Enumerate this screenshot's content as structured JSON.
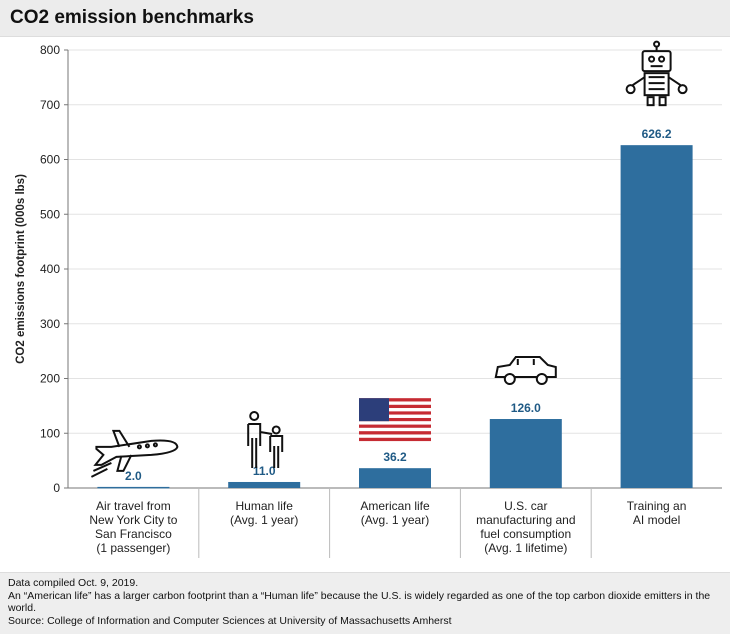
{
  "title": "CO2 emission benchmarks",
  "chart_data": {
    "type": "bar",
    "title": "CO2 emission benchmarks",
    "ylabel": "CO2 emissions footprint (000s lbs)",
    "xlabel": "",
    "ylim": [
      0,
      800
    ],
    "yticks": [
      0,
      100,
      200,
      300,
      400,
      500,
      600,
      700,
      800
    ],
    "categories": [
      [
        "Air travel from",
        "New York City to",
        "San Francisco",
        "(1 passenger)"
      ],
      [
        "Human life",
        "(Avg. 1 year)"
      ],
      [
        "American life",
        "(Avg. 1 year)"
      ],
      [
        "U.S. car",
        "manufacturing and",
        "fuel consumption",
        "(Avg. 1 lifetime)"
      ],
      [
        "Training an",
        "AI model"
      ]
    ],
    "values": [
      2.0,
      11.0,
      36.2,
      126.0,
      626.2
    ],
    "data_labels": [
      "2.0",
      "11.0",
      "36.2",
      "126.0",
      "626.2"
    ],
    "icons": [
      "airplane-icon",
      "people-icon",
      "us-flag-icon",
      "car-icon",
      "robot-icon"
    ],
    "bar_color": "#2e6e9e",
    "label_color": "#1f5a85",
    "grid": true
  },
  "footer": {
    "line1": "Data compiled Oct. 9, 2019.",
    "line2": "An “American life” has a larger carbon footprint than a “Human life” because the U.S. is widely regarded as one of the top carbon dioxide emitters in the world.",
    "line3": "Source: College of Information and Computer Sciences at University of Massachusetts Amherst"
  }
}
